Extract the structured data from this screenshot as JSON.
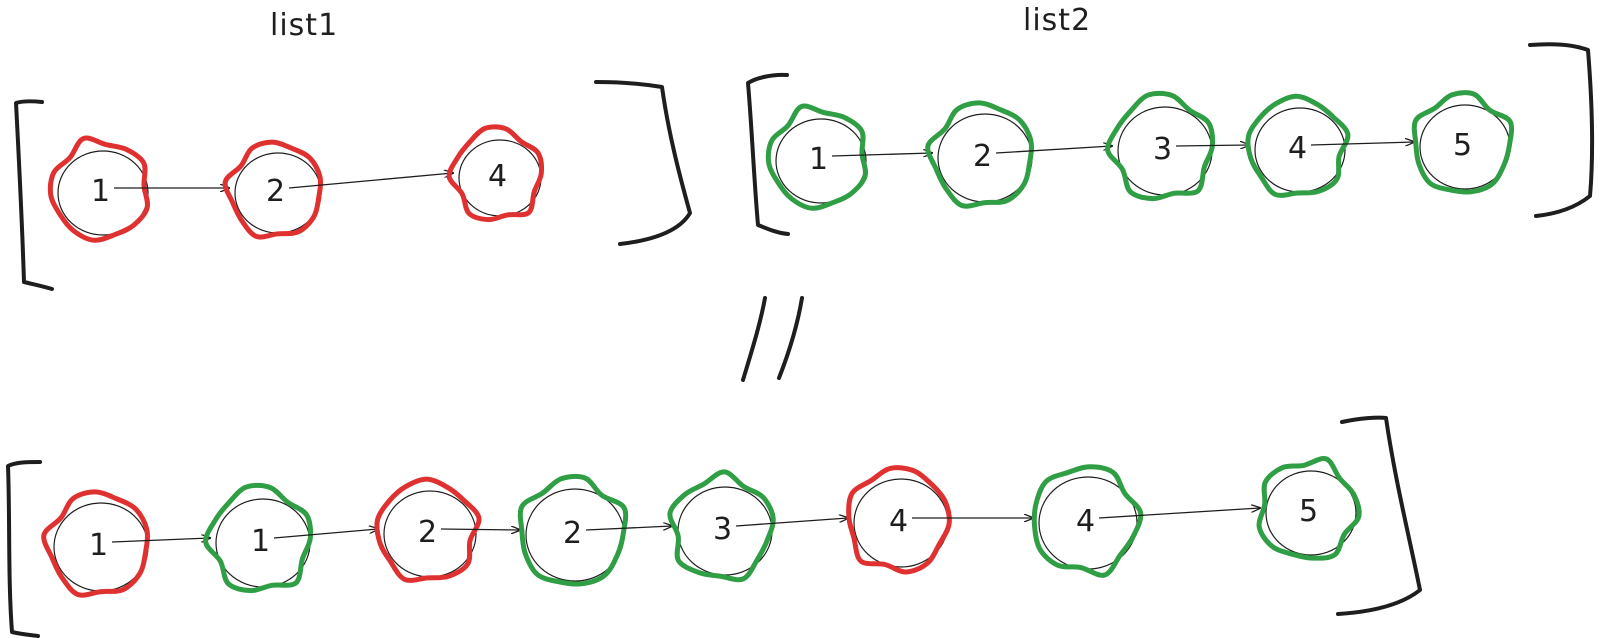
{
  "diagram": {
    "colors": {
      "ink": "#1e1e1e",
      "list1": "#e03131",
      "list2": "#2f9e44"
    },
    "list1": {
      "title": "list1",
      "nodes": [
        {
          "value": "1",
          "source": "list1"
        },
        {
          "value": "2",
          "source": "list1"
        },
        {
          "value": "4",
          "source": "list1"
        }
      ]
    },
    "list2": {
      "title": "list2",
      "nodes": [
        {
          "value": "1",
          "source": "list2"
        },
        {
          "value": "2",
          "source": "list2"
        },
        {
          "value": "3",
          "source": "list2"
        },
        {
          "value": "4",
          "source": "list2"
        },
        {
          "value": "5",
          "source": "list2"
        }
      ]
    },
    "merged": {
      "nodes": [
        {
          "value": "1",
          "source": "list1"
        },
        {
          "value": "1",
          "source": "list2"
        },
        {
          "value": "2",
          "source": "list1"
        },
        {
          "value": "2",
          "source": "list2"
        },
        {
          "value": "3",
          "source": "list2"
        },
        {
          "value": "4",
          "source": "list1"
        },
        {
          "value": "4",
          "source": "list2"
        },
        {
          "value": "5",
          "source": "list2"
        }
      ]
    }
  }
}
